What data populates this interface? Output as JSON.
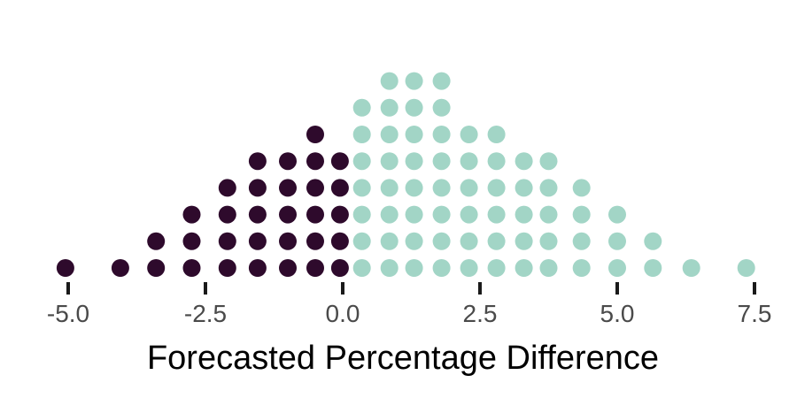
{
  "chart_data": {
    "type": "dotplot",
    "title": "",
    "xlabel": "Forecasted Percentage Difference",
    "ylabel": "",
    "xlim": [
      -5.2,
      7.7
    ],
    "x_ticks": [
      -5.0,
      -2.5,
      0.0,
      2.5,
      5.0,
      7.5
    ],
    "x_tick_labels": [
      "-5.0",
      "-2.5",
      "0.0",
      "2.5",
      "5.0",
      "7.5"
    ],
    "grid": false,
    "legend": "none",
    "colors": {
      "negative": "#2e0a2c",
      "positive": "#a2d5c6",
      "axis": "#1a1a1a"
    },
    "bins": [
      {
        "x": -5.05,
        "count": 1,
        "group": "negative"
      },
      {
        "x": -4.05,
        "count": 1,
        "group": "negative"
      },
      {
        "x": -3.4,
        "count": 2,
        "group": "negative"
      },
      {
        "x": -2.75,
        "count": 3,
        "group": "negative"
      },
      {
        "x": -2.1,
        "count": 4,
        "group": "negative"
      },
      {
        "x": -1.55,
        "count": 5,
        "group": "negative"
      },
      {
        "x": -1.0,
        "count": 5,
        "group": "negative"
      },
      {
        "x": -0.5,
        "count": 6,
        "group": "negative"
      },
      {
        "x": -0.05,
        "count": 5,
        "group": "negative"
      },
      {
        "x": 0.35,
        "count": 7,
        "group": "positive"
      },
      {
        "x": 0.85,
        "count": 8,
        "group": "positive"
      },
      {
        "x": 1.3,
        "count": 8,
        "group": "positive"
      },
      {
        "x": 1.8,
        "count": 8,
        "group": "positive"
      },
      {
        "x": 2.3,
        "count": 6,
        "group": "positive"
      },
      {
        "x": 2.8,
        "count": 6,
        "group": "positive"
      },
      {
        "x": 3.3,
        "count": 5,
        "group": "positive"
      },
      {
        "x": 3.75,
        "count": 5,
        "group": "positive"
      },
      {
        "x": 4.35,
        "count": 4,
        "group": "positive"
      },
      {
        "x": 5.0,
        "count": 3,
        "group": "positive"
      },
      {
        "x": 5.65,
        "count": 2,
        "group": "positive"
      },
      {
        "x": 6.35,
        "count": 1,
        "group": "positive"
      },
      {
        "x": 7.35,
        "count": 1,
        "group": "positive"
      }
    ]
  }
}
